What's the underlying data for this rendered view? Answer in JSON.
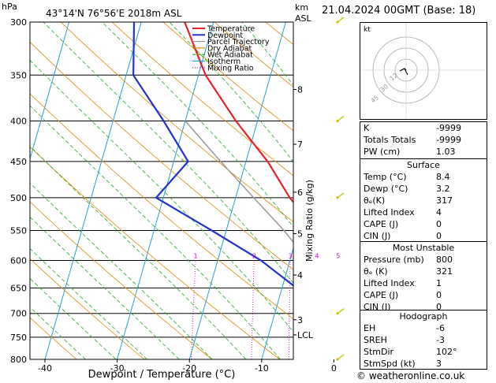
{
  "header": {
    "hpa_label": "hPa",
    "location": "43°14'N 76°56'E 2018m ASL",
    "km_label": "km",
    "asl_label": "ASL",
    "datetime": "21.04.2024 00GMT (Base: 18)"
  },
  "chart_data": {
    "type": "line",
    "title": "43°14'N 76°56'E 2018m ASL",
    "xlabel": "Dewpoint / Temperature (°C)",
    "ylabel": "hPa",
    "y2label": "Mixing Ratio (g/kg)",
    "y_scale": "log",
    "pressure_ticks": [
      300,
      350,
      400,
      450,
      500,
      550,
      600,
      650,
      700,
      750,
      800
    ],
    "temp_ticks": [
      -40,
      -30,
      -20,
      -10,
      0,
      10,
      20,
      30
    ],
    "km_ticks": [
      {
        "label": "8",
        "p": 365
      },
      {
        "label": "7",
        "p": 428
      },
      {
        "label": "6",
        "p": 492
      },
      {
        "label": "5",
        "p": 555
      },
      {
        "label": "4",
        "p": 626
      },
      {
        "label": "3",
        "p": 713
      },
      {
        "label": "LCL",
        "p": 745
      }
    ],
    "mixing_ratio_labels": [
      "1",
      "2",
      "3",
      "4",
      "5",
      "8",
      "10",
      "15",
      "20",
      "25"
    ],
    "mixing_ratio_values": [
      1,
      2,
      3,
      4,
      5,
      8,
      10,
      15,
      20,
      25
    ],
    "legend": [
      {
        "name": "Temperature",
        "color": "#e8202a"
      },
      {
        "name": "Dewpoint",
        "color": "#2233cc"
      },
      {
        "name": "Parcel Trajectory",
        "color": "#999999"
      },
      {
        "name": "Dry Adiabat",
        "color": "#e08a00"
      },
      {
        "name": "Wet Adiabat",
        "color": "#22aa22"
      },
      {
        "name": "Isotherm",
        "color": "#22a0e0"
      },
      {
        "name": "Mixing Ratio",
        "color": "#cc00cc"
      }
    ],
    "series": [
      {
        "name": "Temperature",
        "color": "#e8202a",
        "points": [
          [
            800,
            8.4
          ],
          [
            750,
            5.5
          ],
          [
            700,
            2.5
          ],
          [
            650,
            -0.5
          ],
          [
            600,
            -3.5
          ],
          [
            550,
            -7.5
          ],
          [
            500,
            -12.5
          ],
          [
            450,
            -17
          ],
          [
            400,
            -23
          ],
          [
            350,
            -29
          ],
          [
            300,
            -34
          ]
        ]
      },
      {
        "name": "Dewpoint",
        "color": "#2233cc",
        "points": [
          [
            800,
            3.2
          ],
          [
            750,
            0.5
          ],
          [
            700,
            -2.5
          ],
          [
            650,
            -8
          ],
          [
            600,
            -14
          ],
          [
            550,
            -22
          ],
          [
            500,
            -31
          ],
          [
            450,
            -28
          ],
          [
            400,
            -33
          ],
          [
            350,
            -39
          ],
          [
            300,
            -41
          ]
        ]
      },
      {
        "name": "Parcel Trajectory",
        "color": "#999999",
        "points": [
          [
            800,
            8.4
          ],
          [
            745,
            2.5
          ],
          [
            700,
            0
          ],
          [
            650,
            -3.5
          ],
          [
            600,
            -7.5
          ],
          [
            550,
            -12
          ],
          [
            500,
            -17.5
          ],
          [
            450,
            -23.5
          ],
          [
            400,
            -30
          ]
        ]
      }
    ],
    "wind_barbs_p": [
      300,
      400,
      500,
      700,
      800
    ]
  },
  "indices": {
    "rows": [
      {
        "label": "K",
        "value": "-9999"
      },
      {
        "label": "Totals Totals",
        "value": "-9999"
      },
      {
        "label": "PW (cm)",
        "value": "1.03"
      }
    ]
  },
  "surface": {
    "title": "Surface",
    "rows": [
      {
        "label": "Temp (°C)",
        "value": "8.4"
      },
      {
        "label": "Dewp (°C)",
        "value": "3.2"
      },
      {
        "label": "θₑ(K)",
        "value": "317"
      },
      {
        "label": "Lifted Index",
        "value": "4"
      },
      {
        "label": "CAPE (J)",
        "value": "0"
      },
      {
        "label": "CIN (J)",
        "value": "0"
      }
    ]
  },
  "most_unstable": {
    "title": "Most Unstable",
    "rows": [
      {
        "label": "Pressure (mb)",
        "value": "800"
      },
      {
        "label": "θₑ (K)",
        "value": "321"
      },
      {
        "label": "Lifted Index",
        "value": "1"
      },
      {
        "label": "CAPE (J)",
        "value": "0"
      },
      {
        "label": "CIN (J)",
        "value": "0"
      }
    ]
  },
  "hodograph_table": {
    "title": "Hodograph",
    "rows": [
      {
        "label": "EH",
        "value": "-6"
      },
      {
        "label": "SREH",
        "value": "-3"
      },
      {
        "label": "StmDir",
        "value": "102°"
      },
      {
        "label": "StmSpd (kt)",
        "value": "3"
      }
    ]
  },
  "hodograph": {
    "unit_label": "kt",
    "ring_labels": [
      "12",
      "30",
      "45"
    ]
  },
  "footer": {
    "copyright": "© weatheronline.co.uk"
  }
}
